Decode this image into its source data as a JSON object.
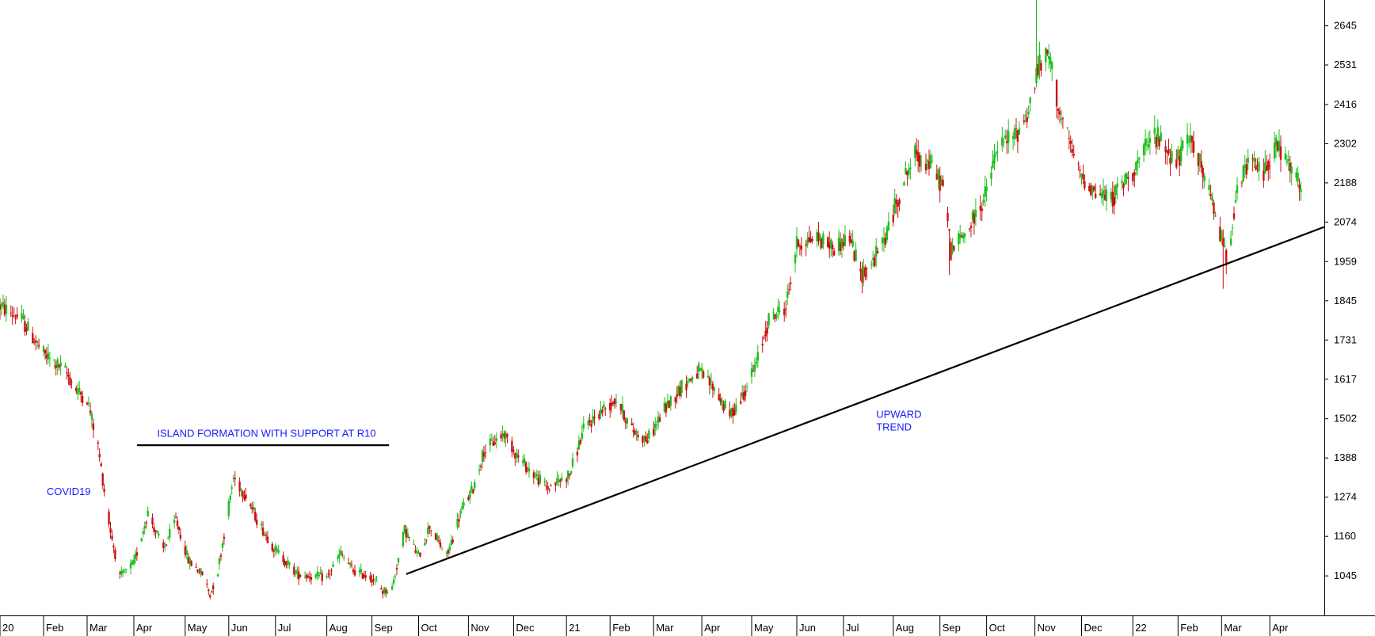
{
  "colors": {
    "background": "#ffffff",
    "up_candle": "#1fbf1f",
    "down_candle": "#cc1111",
    "annotation_text": "#1a1aff",
    "trendline": "#000000",
    "axis": "#000000"
  },
  "chart_data": {
    "type": "candlestick",
    "title": "",
    "xlabel": "",
    "ylabel": "",
    "y_axis_position": "right",
    "grid": false,
    "ylim": [
      930,
      2720
    ],
    "y_ticks": [
      1045,
      1160,
      1274,
      1388,
      1502,
      1617,
      1731,
      1845,
      1959,
      2074,
      2188,
      2302,
      2416,
      2531,
      2645
    ],
    "x_range": [
      "2020-01-06",
      "2022-05-06"
    ],
    "x_ticks": [
      {
        "date": "2020-01-06",
        "label": "20"
      },
      {
        "date": "2020-02-03",
        "label": "Feb"
      },
      {
        "date": "2020-03-02",
        "label": "Mar"
      },
      {
        "date": "2020-04-01",
        "label": "Apr"
      },
      {
        "date": "2020-05-04",
        "label": "May"
      },
      {
        "date": "2020-06-01",
        "label": "Jun"
      },
      {
        "date": "2020-07-01",
        "label": "Jul"
      },
      {
        "date": "2020-08-03",
        "label": "Aug"
      },
      {
        "date": "2020-09-01",
        "label": "Sep"
      },
      {
        "date": "2020-10-01",
        "label": "Oct"
      },
      {
        "date": "2020-11-02",
        "label": "Nov"
      },
      {
        "date": "2020-12-01",
        "label": "Dec"
      },
      {
        "date": "2021-01-04",
        "label": "21"
      },
      {
        "date": "2021-02-01",
        "label": "Feb"
      },
      {
        "date": "2021-03-01",
        "label": "Mar"
      },
      {
        "date": "2021-04-01",
        "label": "Apr"
      },
      {
        "date": "2021-05-03",
        "label": "May"
      },
      {
        "date": "2021-06-01",
        "label": "Jun"
      },
      {
        "date": "2021-07-01",
        "label": "Jul"
      },
      {
        "date": "2021-08-02",
        "label": "Aug"
      },
      {
        "date": "2021-09-01",
        "label": "Sep"
      },
      {
        "date": "2021-10-01",
        "label": "Oct"
      },
      {
        "date": "2021-11-01",
        "label": "Nov"
      },
      {
        "date": "2021-12-01",
        "label": "Dec"
      },
      {
        "date": "2022-01-03",
        "label": "22"
      },
      {
        "date": "2022-02-01",
        "label": "Feb"
      },
      {
        "date": "2022-03-01",
        "label": "Mar"
      },
      {
        "date": "2022-04-01",
        "label": "Apr"
      }
    ],
    "price_path": [
      [
        "2020-01-06",
        1830
      ],
      [
        "2020-01-20",
        1790
      ],
      [
        "2020-02-03",
        1690
      ],
      [
        "2020-02-17",
        1640
      ],
      [
        "2020-02-25",
        1580
      ],
      [
        "2020-03-02",
        1560
      ],
      [
        "2020-03-09",
        1420
      ],
      [
        "2020-03-16",
        1200
      ],
      [
        "2020-03-23",
        1040
      ],
      [
        "2020-04-01",
        1080
      ],
      [
        "2020-04-10",
        1230
      ],
      [
        "2020-04-20",
        1120
      ],
      [
        "2020-04-28",
        1210
      ],
      [
        "2020-05-06",
        1090
      ],
      [
        "2020-05-15",
        1050
      ],
      [
        "2020-05-20",
        990
      ],
      [
        "2020-05-25",
        1060
      ],
      [
        "2020-06-04",
        1330
      ],
      [
        "2020-06-12",
        1280
      ],
      [
        "2020-06-20",
        1200
      ],
      [
        "2020-07-01",
        1120
      ],
      [
        "2020-07-15",
        1050
      ],
      [
        "2020-08-03",
        1040
      ],
      [
        "2020-08-12",
        1110
      ],
      [
        "2020-08-20",
        1060
      ],
      [
        "2020-09-01",
        1040
      ],
      [
        "2020-09-08",
        1000
      ],
      [
        "2020-09-14",
        1010
      ],
      [
        "2020-09-22",
        1180
      ],
      [
        "2020-10-01",
        1100
      ],
      [
        "2020-10-08",
        1190
      ],
      [
        "2020-10-19",
        1100
      ],
      [
        "2020-10-28",
        1230
      ],
      [
        "2020-11-05",
        1300
      ],
      [
        "2020-11-12",
        1410
      ],
      [
        "2020-11-25",
        1460
      ],
      [
        "2020-12-04",
        1390
      ],
      [
        "2020-12-14",
        1340
      ],
      [
        "2020-12-23",
        1300
      ],
      [
        "2021-01-06",
        1340
      ],
      [
        "2021-01-15",
        1470
      ],
      [
        "2021-01-25",
        1520
      ],
      [
        "2021-02-05",
        1560
      ],
      [
        "2021-02-15",
        1470
      ],
      [
        "2021-02-25",
        1440
      ],
      [
        "2021-03-08",
        1530
      ],
      [
        "2021-03-18",
        1590
      ],
      [
        "2021-03-30",
        1640
      ],
      [
        "2021-04-09",
        1590
      ],
      [
        "2021-04-19",
        1510
      ],
      [
        "2021-04-26",
        1560
      ],
      [
        "2021-05-06",
        1660
      ],
      [
        "2021-05-14",
        1790
      ],
      [
        "2021-05-25",
        1830
      ],
      [
        "2021-06-01",
        2010
      ],
      [
        "2021-06-14",
        2030
      ],
      [
        "2021-06-25",
        2000
      ],
      [
        "2021-07-05",
        2030
      ],
      [
        "2021-07-12",
        1920
      ],
      [
        "2021-07-20",
        1960
      ],
      [
        "2021-07-28",
        2030
      ],
      [
        "2021-08-09",
        2200
      ],
      [
        "2021-08-16",
        2270
      ],
      [
        "2021-08-26",
        2240
      ],
      [
        "2021-09-03",
        2180
      ],
      [
        "2021-09-08",
        1990
      ],
      [
        "2021-09-20",
        2060
      ],
      [
        "2021-09-30",
        2150
      ],
      [
        "2021-10-08",
        2290
      ],
      [
        "2021-10-20",
        2330
      ],
      [
        "2021-10-28",
        2400
      ],
      [
        "2021-11-03",
        2520
      ],
      [
        "2021-11-10",
        2560
      ],
      [
        "2021-11-17",
        2390
      ],
      [
        "2021-11-29",
        2220
      ],
      [
        "2021-12-10",
        2160
      ],
      [
        "2021-12-20",
        2140
      ],
      [
        "2022-01-04",
        2230
      ],
      [
        "2022-01-17",
        2330
      ],
      [
        "2022-01-31",
        2250
      ],
      [
        "2022-02-10",
        2320
      ],
      [
        "2022-02-22",
        2140
      ],
      [
        "2022-03-01",
        2030
      ],
      [
        "2022-03-04",
        1970
      ],
      [
        "2022-03-10",
        2140
      ],
      [
        "2022-03-18",
        2250
      ],
      [
        "2022-03-28",
        2220
      ],
      [
        "2022-04-05",
        2300
      ],
      [
        "2022-04-13",
        2240
      ],
      [
        "2022-04-21",
        2170
      ]
    ],
    "spikes": [
      {
        "date": "2021-11-02",
        "high": 2720
      },
      {
        "date": "2022-03-02",
        "low": 1880
      },
      {
        "date": "2021-09-07",
        "low": 1920
      }
    ],
    "trendlines": [
      {
        "name": "upward-trendline",
        "from": [
          "2020-09-23",
          1050
        ],
        "to": [
          "2022-05-06",
          2060
        ]
      },
      {
        "name": "support-line",
        "from": [
          "2020-04-03",
          1425
        ],
        "to": [
          "2020-09-12",
          1425
        ]
      }
    ],
    "annotations": [
      {
        "name": "annotation-island",
        "lines": [
          "ISLAND FORMATION WITH SUPPORT AT R10"
        ],
        "date": "2020-04-16",
        "value": 1450
      },
      {
        "name": "annotation-covid",
        "lines": [
          "COVID19"
        ],
        "date": "2020-02-05",
        "value": 1280
      },
      {
        "name": "annotation-upward-trend",
        "lines": [
          "UPWARD",
          "TREND"
        ],
        "date": "2021-07-22",
        "value": 1505
      }
    ]
  }
}
